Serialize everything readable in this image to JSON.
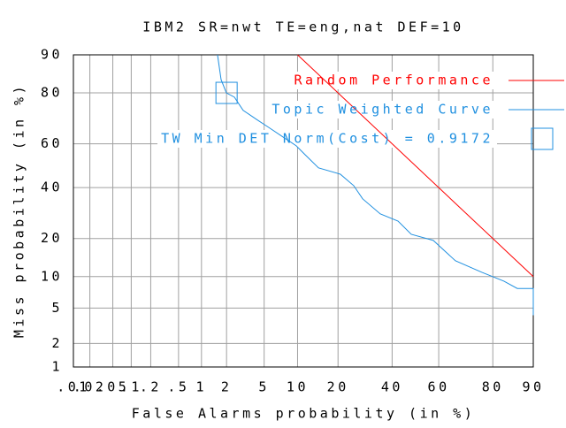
{
  "chart_data": {
    "type": "det",
    "title": "IBM2 SR=nwt TE=eng,nat DEF=10",
    "x_label": "False Alarms probability (in %)",
    "y_label": "Miss probability (in %)",
    "xlim": [
      0.01,
      90
    ],
    "ylim": [
      1,
      90
    ],
    "xticks": [
      {
        "value": 0.01,
        "label": ".01"
      },
      {
        "value": 0.02,
        "label": ".02"
      },
      {
        "value": 0.05,
        "label": ".05"
      },
      {
        "value": 0.1,
        "label": ".1"
      },
      {
        "value": 0.2,
        "label": ".2"
      },
      {
        "value": 0.5,
        "label": ".5"
      },
      1,
      2,
      5,
      10,
      20,
      40,
      60,
      80,
      90
    ],
    "yticks": [
      1,
      2,
      5,
      10,
      20,
      40,
      60,
      80,
      90
    ],
    "grid": true,
    "series": [
      {
        "name": "Random Performance",
        "color": "#ff0000",
        "x": [
          10,
          90
        ],
        "values": [
          90,
          10
        ]
      },
      {
        "name": "Topic Weighted Curve",
        "color": "#2090e0",
        "x": [
          1.57,
          1.73,
          1.99,
          2.45,
          3.05,
          4.19,
          5.66,
          7.5,
          9.75,
          11.5,
          14.6,
          20.7,
          25.1,
          28.3,
          35.1,
          42.5,
          48.2,
          57.7,
          66.8,
          76.5,
          83.2,
          86.6,
          90,
          90
        ],
        "values": [
          90,
          84,
          80,
          78.6,
          73.9,
          70.4,
          66.8,
          63,
          59.1,
          55.1,
          49,
          46.1,
          40.9,
          35.1,
          28.9,
          26.1,
          21.4,
          19.4,
          13.6,
          10.9,
          9.1,
          7.8,
          7.8,
          4.2
        ]
      }
    ],
    "min_cost": {
      "label": "TW Min DET Norm(Cost) = 0.9172",
      "color": "#2090e0",
      "x": 2,
      "y": 80
    }
  }
}
